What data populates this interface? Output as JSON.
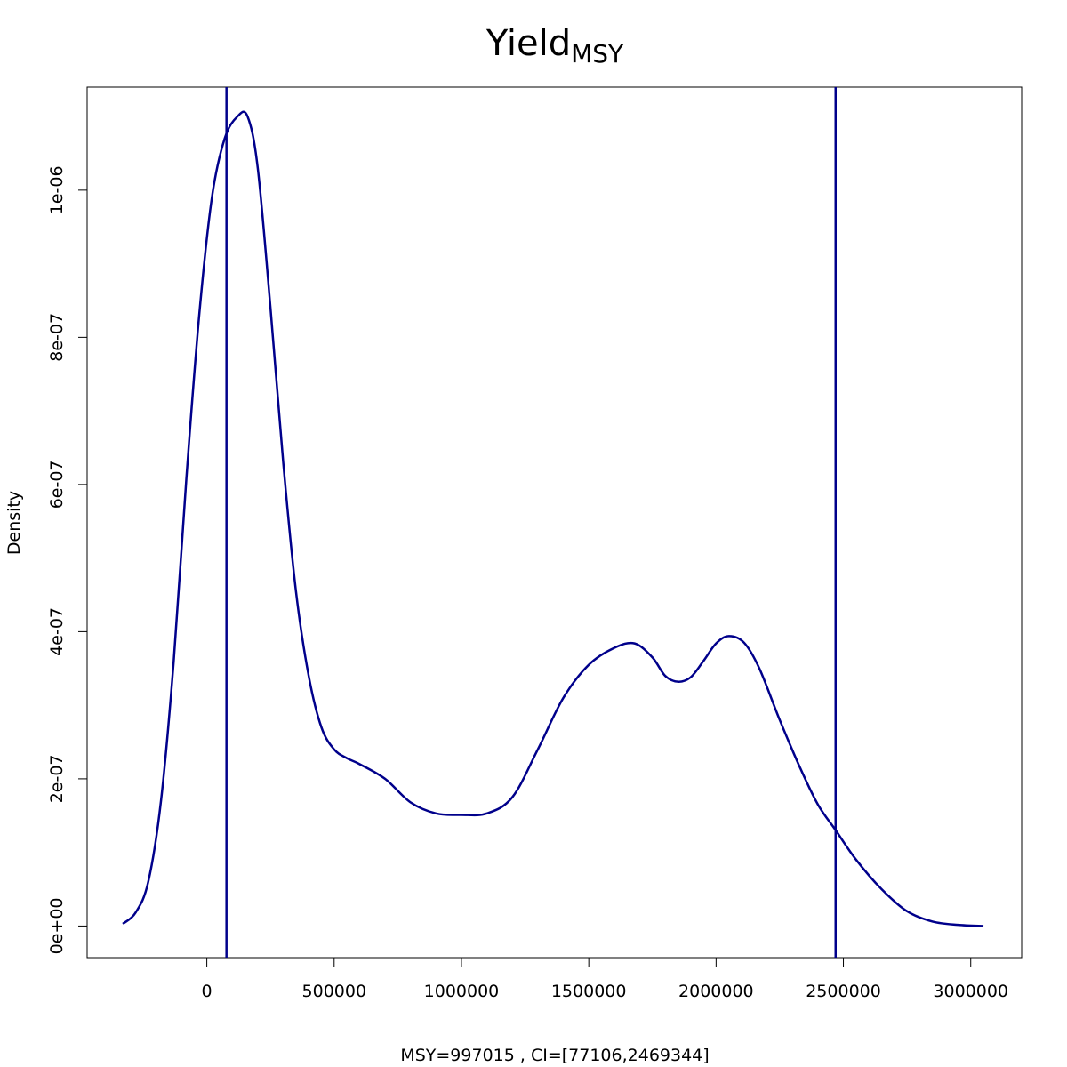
{
  "chart_data": {
    "type": "line",
    "title": "Yield",
    "title_subscript": "MSY",
    "xlabel": "MSY=997015 , CI=[77106,2469344]",
    "ylabel": "Density",
    "xlim": [
      -470000,
      3200000
    ],
    "ylim": [
      -4.3e-08,
      1.14e-06
    ],
    "x_ticks": [
      0,
      500000,
      1000000,
      1500000,
      2000000,
      2500000,
      3000000
    ],
    "x_tick_labels": [
      "0",
      "500000",
      "1000000",
      "1500000",
      "2000000",
      "2500000",
      "3000000"
    ],
    "y_ticks": [
      0,
      2e-07,
      4e-07,
      6e-07,
      8e-07,
      1e-06
    ],
    "y_tick_labels": [
      "0e+00",
      "2e-07",
      "4e-07",
      "6e-07",
      "8e-07",
      "1e-06"
    ],
    "line_color": "#00008B",
    "vlines": [
      77106,
      2469344
    ],
    "series": [
      {
        "x": [
          -330000,
          -280000,
          -230000,
          -180000,
          -130000,
          -80000,
          -30000,
          20000,
          70000,
          120000,
          160000,
          200000,
          250000,
          300000,
          350000,
          400000,
          450000,
          500000,
          550000,
          600000,
          700000,
          800000,
          900000,
          1000000,
          1100000,
          1200000,
          1300000,
          1400000,
          1500000,
          1600000,
          1680000,
          1750000,
          1800000,
          1850000,
          1900000,
          1950000,
          2000000,
          2050000,
          2110000,
          2170000,
          2250000,
          2330000,
          2400000,
          2470000,
          2550000,
          2650000,
          2750000,
          2850000,
          2950000,
          3050000
        ],
        "y": [
          3e-09,
          1.8e-08,
          6e-08,
          1.7e-07,
          3.6e-07,
          6.1e-07,
          8.3e-07,
          9.9e-07,
          1.07e-06,
          1.1e-06,
          1.1e-06,
          1.03e-06,
          8.4e-07,
          6.3e-07,
          4.55e-07,
          3.4e-07,
          2.7e-07,
          2.4e-07,
          2.28e-07,
          2.2e-07,
          2e-07,
          1.68e-07,
          1.53e-07,
          1.51e-07,
          1.53e-07,
          1.75e-07,
          2.4e-07,
          3.1e-07,
          3.55e-07,
          3.78e-07,
          3.84e-07,
          3.65e-07,
          3.4e-07,
          3.32e-07,
          3.38e-07,
          3.6e-07,
          3.84e-07,
          3.94e-07,
          3.85e-07,
          3.5e-07,
          2.8e-07,
          2.15e-07,
          1.65e-07,
          1.3e-07,
          9e-08,
          5e-08,
          2e-08,
          6e-09,
          1.5e-09,
          0
        ]
      }
    ]
  }
}
